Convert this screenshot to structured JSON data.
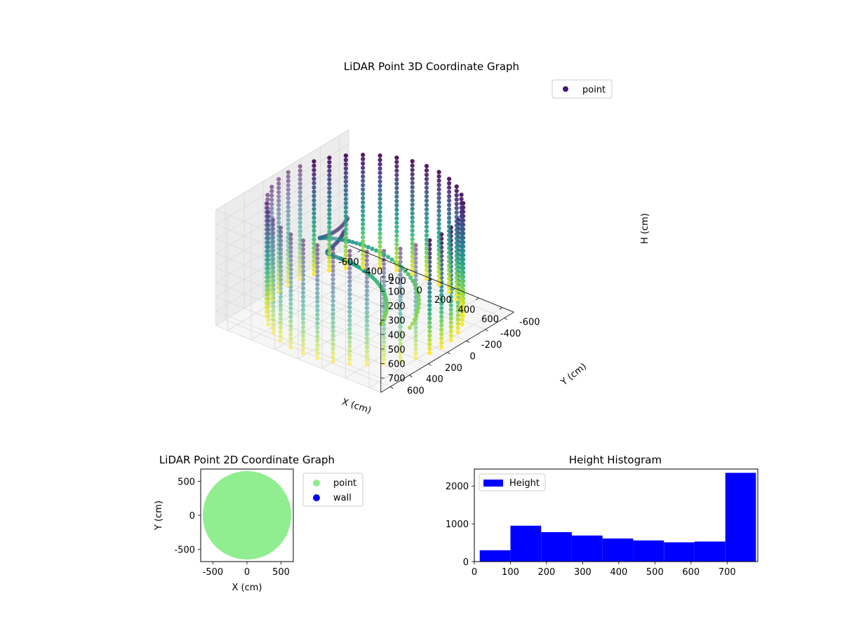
{
  "chart_data": [
    {
      "type": "scatter3d",
      "title": "LiDAR Point 3D Coordinate Graph",
      "xlabel": "X (cm)",
      "ylabel": "Y (cm)",
      "zlabel": "H (cm)",
      "xlim": [
        -700,
        700
      ],
      "ylim": [
        -700,
        700
      ],
      "zlim": [
        800,
        0
      ],
      "xticks": [
        -600,
        -400,
        -200,
        0,
        200,
        400,
        600
      ],
      "yticks": [
        -600,
        -400,
        -200,
        0,
        200,
        400,
        600
      ],
      "zticks": [
        0,
        100,
        200,
        300,
        400,
        500,
        600,
        700
      ],
      "grid": true,
      "legend": {
        "position": "top-right",
        "entries": [
          "point"
        ]
      },
      "colormap": "viridis",
      "series": [
        {
          "name": "point",
          "description": "cylindrical wall of radius about 650 cm, columns every 10 degrees, heights 0-780 cm, plus a spiral staircase inside",
          "radius": 650,
          "height_range": [
            0,
            780
          ],
          "angular_step_deg": 10
        }
      ]
    },
    {
      "type": "scatter",
      "title": "LiDAR Point 2D Coordinate Graph",
      "xlabel": "X (cm)",
      "ylabel": "Y (cm)",
      "xlim": [
        -680,
        680
      ],
      "ylim": [
        -680,
        680
      ],
      "xticks": [
        -500,
        0,
        500
      ],
      "yticks": [
        -500,
        0,
        500
      ],
      "legend": {
        "position": "outside-right",
        "entries": [
          "point",
          "wall"
        ]
      },
      "series": [
        {
          "name": "point",
          "color": "#90ee90",
          "radius": 650
        },
        {
          "name": "wall",
          "color": "#0000ff"
        }
      ]
    },
    {
      "type": "bar",
      "title": "Height Histogram",
      "xlim": [
        0,
        785
      ],
      "ylim": [
        0,
        2450
      ],
      "xticks": [
        0,
        100,
        200,
        300,
        400,
        500,
        600,
        700
      ],
      "yticks": [
        0,
        1000,
        2000
      ],
      "legend": {
        "position": "top-left",
        "entries": [
          "Height"
        ]
      },
      "color": "#0000ff",
      "series": [
        {
          "name": "Height",
          "bins": [
            [
              15,
              100
            ],
            [
              100,
              185
            ],
            [
              185,
              270
            ],
            [
              270,
              355
            ],
            [
              355,
              440
            ],
            [
              440,
              525
            ],
            [
              525,
              610
            ],
            [
              610,
              695
            ],
            [
              695,
              780
            ]
          ],
          "values": [
            300,
            950,
            780,
            690,
            610,
            560,
            510,
            530,
            2350
          ]
        }
      ]
    }
  ]
}
